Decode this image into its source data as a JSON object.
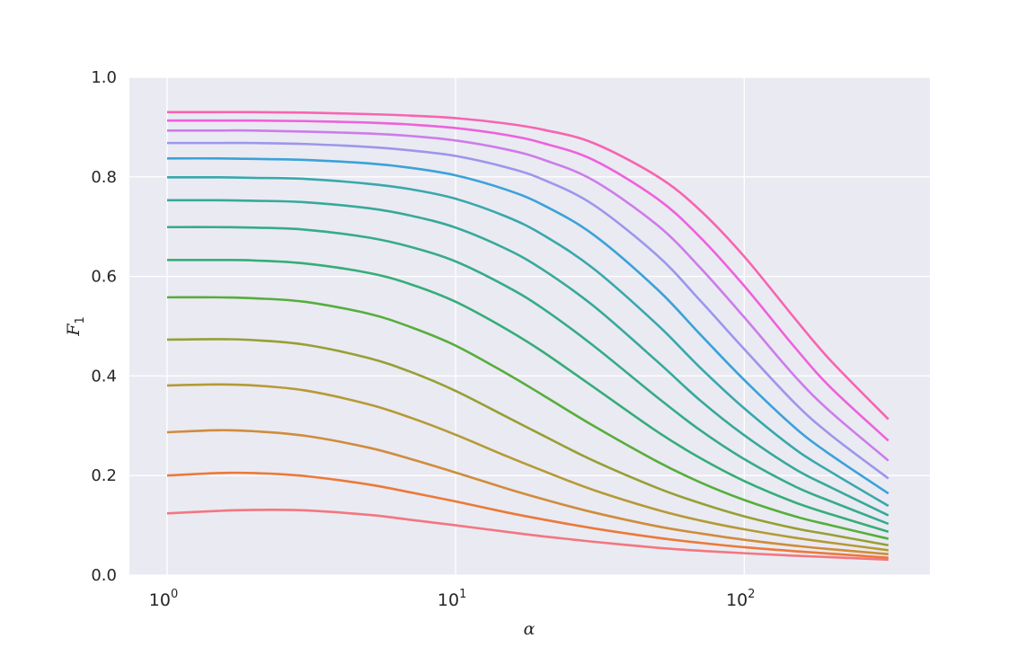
{
  "chart_data": {
    "type": "line",
    "title": "",
    "xlabel": "α",
    "ylabel": "F",
    "ylabel_subscript": "1",
    "xscale": "log",
    "xlim": [
      0.74,
      440
    ],
    "ylim": [
      0.0,
      1.0
    ],
    "grid": true,
    "background": "#eaeaf2",
    "grid_color": "#ffffff",
    "legend": "none",
    "yticks": [
      "0.0",
      "0.2",
      "0.4",
      "0.6",
      "0.8",
      "1.0"
    ],
    "xticks": [
      {
        "value": 1,
        "base": "10",
        "exp": "0"
      },
      {
        "value": 10,
        "base": "10",
        "exp": "1"
      },
      {
        "value": 100,
        "base": "10",
        "exp": "2"
      }
    ],
    "x": [
      1,
      1.5,
      2,
      3,
      5,
      7,
      10,
      15,
      20,
      30,
      50,
      70,
      100,
      150,
      200,
      316
    ],
    "series": [
      {
        "color": "#f37680",
        "values": [
          0.124,
          0.129,
          0.131,
          0.13,
          0.121,
          0.111,
          0.1,
          0.087,
          0.078,
          0.067,
          0.055,
          0.049,
          0.044,
          0.039,
          0.036,
          0.031
        ]
      },
      {
        "color": "#ec7938",
        "values": [
          0.2,
          0.205,
          0.205,
          0.199,
          0.182,
          0.166,
          0.148,
          0.126,
          0.112,
          0.094,
          0.075,
          0.065,
          0.056,
          0.048,
          0.043,
          0.035
        ]
      },
      {
        "color": "#d08c3c",
        "values": [
          0.287,
          0.291,
          0.289,
          0.28,
          0.256,
          0.233,
          0.206,
          0.174,
          0.153,
          0.126,
          0.098,
          0.084,
          0.071,
          0.059,
          0.052,
          0.042
        ]
      },
      {
        "color": "#b59a36",
        "values": [
          0.381,
          0.383,
          0.381,
          0.371,
          0.343,
          0.316,
          0.282,
          0.239,
          0.21,
          0.171,
          0.131,
          0.11,
          0.092,
          0.075,
          0.065,
          0.05
        ]
      },
      {
        "color": "#979f35",
        "values": [
          0.473,
          0.474,
          0.472,
          0.463,
          0.436,
          0.408,
          0.37,
          0.318,
          0.281,
          0.23,
          0.175,
          0.145,
          0.118,
          0.094,
          0.081,
          0.06
        ]
      },
      {
        "color": "#56ae3c",
        "values": [
          0.558,
          0.558,
          0.556,
          0.549,
          0.525,
          0.498,
          0.461,
          0.405,
          0.362,
          0.3,
          0.228,
          0.187,
          0.151,
          0.118,
          0.1,
          0.073
        ]
      },
      {
        "color": "#35ad78",
        "values": [
          0.633,
          0.633,
          0.632,
          0.626,
          0.607,
          0.584,
          0.549,
          0.494,
          0.449,
          0.378,
          0.288,
          0.236,
          0.189,
          0.146,
          0.122,
          0.087
        ]
      },
      {
        "color": "#36ab8c",
        "values": [
          0.699,
          0.699,
          0.698,
          0.694,
          0.678,
          0.659,
          0.63,
          0.58,
          0.536,
          0.461,
          0.357,
          0.292,
          0.233,
          0.178,
          0.148,
          0.103
        ]
      },
      {
        "color": "#37a99a",
        "values": [
          0.753,
          0.753,
          0.752,
          0.749,
          0.737,
          0.722,
          0.698,
          0.655,
          0.614,
          0.541,
          0.429,
          0.352,
          0.281,
          0.213,
          0.176,
          0.12
        ]
      },
      {
        "color": "#38a8ac",
        "values": [
          0.799,
          0.799,
          0.798,
          0.796,
          0.786,
          0.775,
          0.756,
          0.72,
          0.684,
          0.616,
          0.503,
          0.418,
          0.335,
          0.253,
          0.207,
          0.139
        ]
      },
      {
        "color": "#3aa2d9",
        "values": [
          0.837,
          0.837,
          0.836,
          0.834,
          0.827,
          0.818,
          0.803,
          0.774,
          0.744,
          0.684,
          0.574,
          0.485,
          0.392,
          0.296,
          0.241,
          0.164
        ]
      },
      {
        "color": "#9d96ec",
        "values": [
          0.868,
          0.868,
          0.868,
          0.866,
          0.86,
          0.853,
          0.842,
          0.819,
          0.795,
          0.744,
          0.642,
          0.553,
          0.454,
          0.345,
          0.281,
          0.194
        ]
      },
      {
        "color": "#cd7ceb",
        "values": [
          0.893,
          0.893,
          0.893,
          0.891,
          0.887,
          0.882,
          0.873,
          0.855,
          0.835,
          0.793,
          0.703,
          0.619,
          0.518,
          0.399,
          0.327,
          0.23
        ]
      },
      {
        "color": "#ed62dc",
        "values": [
          0.913,
          0.913,
          0.913,
          0.912,
          0.909,
          0.905,
          0.898,
          0.884,
          0.868,
          0.834,
          0.756,
          0.68,
          0.581,
          0.457,
          0.376,
          0.27
        ]
      },
      {
        "color": "#f764b1",
        "values": [
          0.93,
          0.93,
          0.93,
          0.929,
          0.926,
          0.923,
          0.918,
          0.907,
          0.895,
          0.868,
          0.801,
          0.734,
          0.64,
          0.515,
          0.43,
          0.313
        ]
      }
    ]
  }
}
